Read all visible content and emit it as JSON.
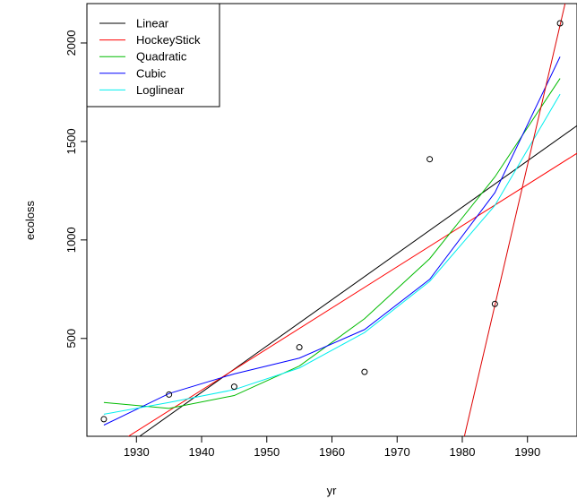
{
  "chart_data": {
    "type": "scatter",
    "title": "",
    "xlabel": "yr",
    "ylabel": "ecoloss",
    "xlim": [
      1922.4,
      1997.6
    ],
    "ylim": [
      3.2,
      2200
    ],
    "xticks": [
      1930,
      1940,
      1950,
      1960,
      1970,
      1980,
      1990
    ],
    "yticks": [
      500,
      1000,
      1500,
      2000
    ],
    "grid": false,
    "legend_position": "top-left",
    "points": {
      "x": [
        1925,
        1935,
        1945,
        1955,
        1965,
        1975,
        1985,
        1995
      ],
      "y": [
        90,
        215,
        255,
        455,
        330,
        1410,
        675,
        2100
      ],
      "marker": "open-circle",
      "color": "#000000"
    },
    "series": [
      {
        "name": "Linear",
        "color": "#000000",
        "x": [
          1922.4,
          1997.6
        ],
        "y": [
          -187,
          1580
        ]
      },
      {
        "name": "HockeyStick",
        "color": "#ff0000",
        "x": [
          1922.4,
          1997.6
        ],
        "y": [
          -130,
          1440
        ]
      },
      {
        "name": "Quadratic",
        "color": "#00bb00",
        "x": [
          1925,
          1935,
          1945,
          1955,
          1965,
          1975,
          1985,
          1995
        ],
        "y": [
          175,
          145,
          210,
          360,
          600,
          905,
          1320,
          1820
        ]
      },
      {
        "name": "Cubic",
        "color": "#0000ff",
        "x": [
          1925,
          1935,
          1945,
          1955,
          1965,
          1975,
          1985,
          1995
        ],
        "y": [
          60,
          220,
          320,
          400,
          545,
          800,
          1240,
          1930
        ]
      },
      {
        "name": "Loglinear",
        "color": "#00eeee",
        "x": [
          1925,
          1935,
          1945,
          1955,
          1965,
          1975,
          1985,
          1995
        ],
        "y": [
          115,
          175,
          240,
          350,
          530,
          790,
          1175,
          1740
        ]
      }
    ],
    "extra_lines": [
      {
        "color": "#dd0000",
        "x": [
          1980.3,
          1997.6
        ],
        "y": [
          0,
          2460
        ]
      }
    ]
  }
}
